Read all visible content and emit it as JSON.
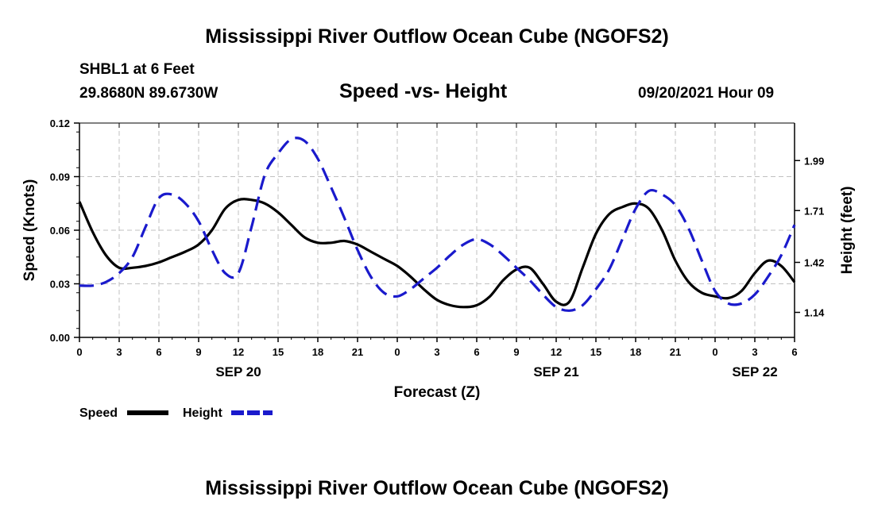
{
  "header": {
    "title": "Mississippi River Outflow Ocean Cube (NGOFS2)",
    "station": "SHBL1 at 6 Feet",
    "coords": "29.8680N  89.6730W",
    "plot_title": "Speed -vs- Height",
    "timestamp": "09/20/2021 Hour 09"
  },
  "footer": {
    "title": "Mississippi River Outflow Ocean Cube (NGOFS2)"
  },
  "colors": {
    "speed": "#000000",
    "height": "#1a1acc",
    "grid": "#c0c0c0"
  },
  "chart_data": {
    "type": "line",
    "title": "Speed -vs- Height",
    "xlabel": "Forecast (Z)",
    "ylabel": "Speed (Knots)",
    "y2label": "Height (feet)",
    "xlim": [
      0,
      54
    ],
    "ylim": [
      0,
      0.12
    ],
    "y2lim": [
      1.0,
      2.2
    ],
    "x_ticks": [
      0,
      3,
      6,
      9,
      12,
      15,
      18,
      21,
      24,
      27,
      30,
      33,
      36,
      39,
      42,
      45,
      48,
      51,
      54
    ],
    "x_tick_labels": [
      "0",
      "3",
      "6",
      "9",
      "12",
      "15",
      "18",
      "21",
      "0",
      "3",
      "6",
      "9",
      "12",
      "15",
      "18",
      "21",
      "0",
      "3",
      "6"
    ],
    "y_ticks": [
      0,
      0.03,
      0.06,
      0.09,
      0.12
    ],
    "y_tick_labels": [
      "0.00",
      "0.03",
      "0.06",
      "0.09",
      "0.12"
    ],
    "y2_ticks": [
      1.14,
      1.42,
      1.71,
      1.99
    ],
    "y2_tick_labels": [
      "1.14",
      "1.42",
      "1.71",
      "1.99"
    ],
    "date_labels": [
      {
        "x": 12,
        "label": "SEP 20"
      },
      {
        "x": 36,
        "label": "SEP 21"
      },
      {
        "x": 51,
        "label": "SEP 22"
      }
    ],
    "legend": [
      "Speed",
      "Height"
    ],
    "series": [
      {
        "name": "Speed",
        "axis": "left",
        "style": "solid",
        "x": [
          0,
          1,
          2,
          3,
          4,
          5,
          6,
          7,
          8,
          9,
          10,
          11,
          12,
          13,
          14,
          15,
          16,
          17,
          18,
          19,
          20,
          21,
          22,
          23,
          24,
          25,
          26,
          27,
          28,
          29,
          30,
          31,
          32,
          33,
          34,
          35,
          36,
          37,
          38,
          39,
          40,
          41,
          42,
          43,
          44,
          45,
          46,
          47,
          48,
          49,
          50,
          51,
          52,
          53,
          54
        ],
        "values": [
          0.076,
          0.059,
          0.046,
          0.039,
          0.039,
          0.04,
          0.042,
          0.045,
          0.048,
          0.052,
          0.06,
          0.072,
          0.077,
          0.077,
          0.075,
          0.07,
          0.063,
          0.056,
          0.053,
          0.053,
          0.054,
          0.052,
          0.048,
          0.044,
          0.04,
          0.034,
          0.027,
          0.021,
          0.018,
          0.017,
          0.018,
          0.023,
          0.032,
          0.038,
          0.039,
          0.03,
          0.02,
          0.02,
          0.039,
          0.058,
          0.069,
          0.073,
          0.075,
          0.072,
          0.06,
          0.043,
          0.031,
          0.025,
          0.023,
          0.022,
          0.026,
          0.036,
          0.043,
          0.04,
          0.031
        ]
      },
      {
        "name": "Height",
        "axis": "right",
        "style": "dashed",
        "x": [
          0,
          1,
          2,
          3,
          4,
          5,
          6,
          7,
          8,
          9,
          10,
          11,
          12,
          13,
          14,
          15,
          16,
          17,
          18,
          19,
          20,
          21,
          22,
          23,
          24,
          25,
          26,
          27,
          28,
          29,
          30,
          31,
          32,
          33,
          34,
          35,
          36,
          37,
          38,
          39,
          40,
          41,
          42,
          43,
          44,
          45,
          46,
          47,
          48,
          49,
          50,
          51,
          52,
          53,
          54
        ],
        "values": [
          1.29,
          1.29,
          1.31,
          1.36,
          1.45,
          1.62,
          1.78,
          1.8,
          1.75,
          1.65,
          1.49,
          1.36,
          1.36,
          1.62,
          1.91,
          2.03,
          2.11,
          2.1,
          2.0,
          1.84,
          1.67,
          1.49,
          1.34,
          1.25,
          1.23,
          1.27,
          1.33,
          1.39,
          1.46,
          1.52,
          1.55,
          1.52,
          1.46,
          1.39,
          1.32,
          1.24,
          1.17,
          1.15,
          1.18,
          1.27,
          1.38,
          1.55,
          1.72,
          1.82,
          1.8,
          1.74,
          1.61,
          1.43,
          1.26,
          1.19,
          1.19,
          1.24,
          1.34,
          1.46,
          1.63
        ]
      }
    ]
  }
}
